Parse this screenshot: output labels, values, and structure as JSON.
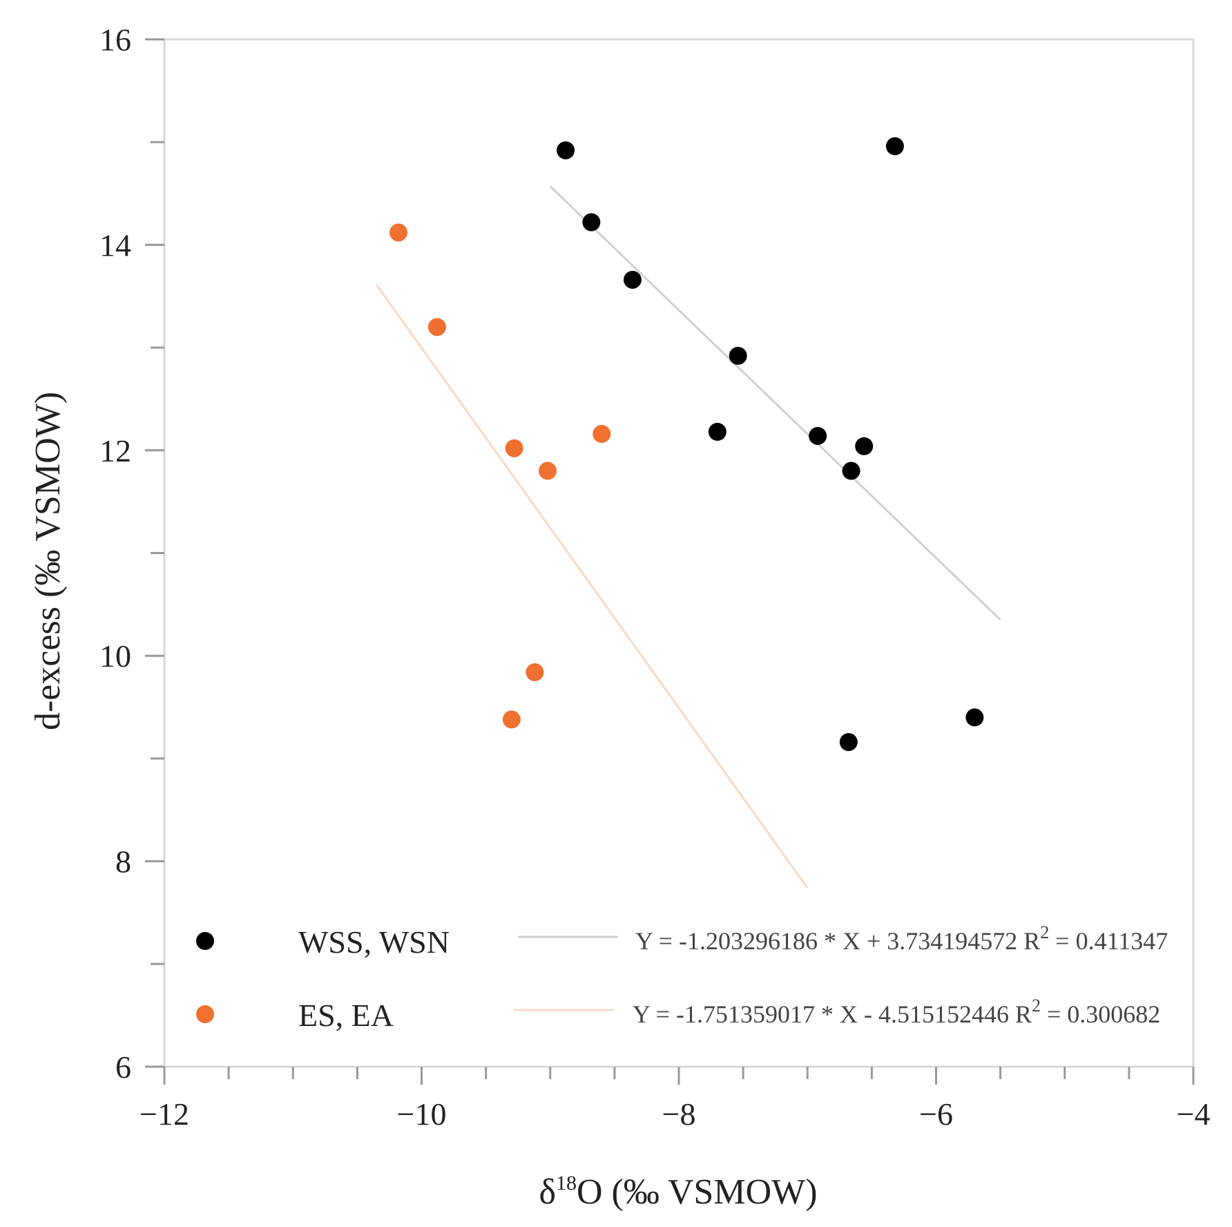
{
  "chart_data": {
    "type": "scatter",
    "xlabel": {
      "prefix": "δ",
      "sup": "18",
      "rest": "O (‰ VSMOW)"
    },
    "ylabel": "d-excess (‰ VSMOW)",
    "xlim": [
      -12,
      -4
    ],
    "ylim": [
      6,
      16
    ],
    "x_ticks": [
      "−12",
      "−10",
      "−8",
      "−6",
      "−4"
    ],
    "y_ticks": [
      "6",
      "8",
      "10",
      "12",
      "14",
      "16"
    ],
    "grid": false,
    "legend_position": "bottom",
    "series": [
      {
        "name": "WSS, WSN",
        "color": "#000000",
        "points": [
          [
            -8.88,
            14.92
          ],
          [
            -8.68,
            14.22
          ],
          [
            -8.36,
            13.66
          ],
          [
            -7.54,
            12.92
          ],
          [
            -7.7,
            12.18
          ],
          [
            -6.92,
            12.14
          ],
          [
            -6.56,
            12.04
          ],
          [
            -6.66,
            11.8
          ],
          [
            -6.32,
            14.96
          ],
          [
            -5.7,
            9.4
          ],
          [
            -6.68,
            9.16
          ]
        ],
        "trendline": {
          "color": "#d0d0d0",
          "x": [
            -9.0,
            -5.5
          ],
          "y": [
            14.57,
            10.35
          ],
          "equation": "Y = -1.203296186 * X + 3.734194572",
          "r2_label": "R",
          "r2_sup": "2",
          "r2_value": " = 0.411347"
        }
      },
      {
        "name": "ES, EA",
        "color": "#f07030",
        "points": [
          [
            -10.18,
            14.12
          ],
          [
            -9.88,
            13.2
          ],
          [
            -9.28,
            12.02
          ],
          [
            -9.02,
            11.8
          ],
          [
            -8.6,
            12.16
          ],
          [
            -9.12,
            9.84
          ],
          [
            -9.3,
            9.38
          ]
        ],
        "trendline": {
          "color": "#fbd9c5",
          "x": [
            -10.35,
            -7.0
          ],
          "y": [
            13.61,
            7.74
          ],
          "equation": "Y = -1.751359017 * X - 4.515152446",
          "r2_label": "R",
          "r2_sup": "2",
          "r2_value": " = 0.300682"
        }
      }
    ]
  }
}
